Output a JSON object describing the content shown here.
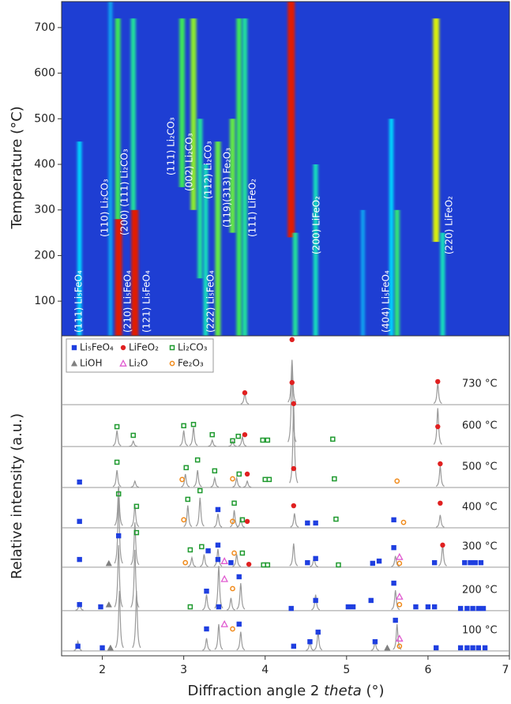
{
  "chart_data": [
    {
      "type": "heatmap",
      "y_label": "Temperature (°C)",
      "xlim": [
        1.5,
        7.0
      ],
      "ylim": [
        24,
        757
      ],
      "yticks": [
        100,
        200,
        300,
        400,
        500,
        600,
        700
      ],
      "streaks": [
        {
          "x": 1.72,
          "tmin": 24,
          "tmax": 450,
          "level": 0.3
        },
        {
          "x": 2.1,
          "tmin": 24,
          "tmax": 757,
          "level": 0.2
        },
        {
          "x": 2.2,
          "tmin": 24,
          "tmax": 280,
          "level": 1.0
        },
        {
          "x": 2.19,
          "tmin": 280,
          "tmax": 720,
          "level": 0.55
        },
        {
          "x": 2.4,
          "tmin": 24,
          "tmax": 300,
          "level": 1.0
        },
        {
          "x": 2.38,
          "tmin": 300,
          "tmax": 720,
          "level": 0.45
        },
        {
          "x": 2.98,
          "tmin": 350,
          "tmax": 720,
          "level": 0.55
        },
        {
          "x": 3.12,
          "tmin": 300,
          "tmax": 720,
          "level": 0.65
        },
        {
          "x": 3.2,
          "tmin": 150,
          "tmax": 500,
          "level": 0.45
        },
        {
          "x": 3.27,
          "tmin": 24,
          "tmax": 400,
          "level": 0.4
        },
        {
          "x": 3.42,
          "tmin": 24,
          "tmax": 450,
          "level": 0.6
        },
        {
          "x": 3.6,
          "tmin": 250,
          "tmax": 500,
          "level": 0.6
        },
        {
          "x": 3.68,
          "tmin": 24,
          "tmax": 720,
          "level": 0.55
        },
        {
          "x": 3.75,
          "tmin": 24,
          "tmax": 720,
          "level": 0.45
        },
        {
          "x": 4.32,
          "tmin": 240,
          "tmax": 757,
          "level": 1.0
        },
        {
          "x": 4.37,
          "tmin": 24,
          "tmax": 250,
          "level": 0.45
        },
        {
          "x": 4.62,
          "tmin": 24,
          "tmax": 400,
          "level": 0.4
        },
        {
          "x": 5.2,
          "tmin": 24,
          "tmax": 300,
          "level": 0.2
        },
        {
          "x": 5.55,
          "tmin": 24,
          "tmax": 500,
          "level": 0.3
        },
        {
          "x": 5.62,
          "tmin": 24,
          "tmax": 300,
          "level": 0.5
        },
        {
          "x": 6.1,
          "tmin": 230,
          "tmax": 720,
          "level": 0.75
        },
        {
          "x": 6.18,
          "tmin": 24,
          "tmax": 250,
          "level": 0.4
        }
      ],
      "annotations": [
        "(111) Li₅FeO₄",
        "(210) Li₅FeO₄",
        "(121) Li₅FeO₄",
        "(110) Li₂CO₃",
        "(200) (111) Li₂CO₃",
        "(111) Li₂CO₃",
        "(002) Li₂CO₃",
        "(112) Li₂CO₃",
        "(119)(313) Fe₂O₃",
        "(222) Li₅FeO₄",
        "(111) LiFeO₂",
        "(200) LiFeO₂",
        "(404) Li₅FeO₄",
        "(220) LiFeO₂"
      ]
    },
    {
      "type": "xrd-stack",
      "y_label": "Relative intensity (a.u.)",
      "x_label": {
        "text": "Diffraction angle 2",
        "italic": "theta",
        "unit": "(°)"
      },
      "xlim": [
        1.5,
        7.0
      ],
      "xticks": [
        2,
        3,
        4,
        5,
        6,
        7
      ],
      "ylim": [
        0,
        100
      ],
      "legend": [
        {
          "name": "Li₅FeO₄",
          "color": "#1f3fe0",
          "shape": "square"
        },
        {
          "name": "LiFeO₂",
          "color": "#e02020",
          "shape": "circle"
        },
        {
          "name": "Li₂CO₃",
          "color": "#1f9a2f",
          "shape": "open-square"
        },
        {
          "name": "LiOH",
          "color": "#808080",
          "shape": "triangle"
        },
        {
          "name": "Li₂O",
          "color": "#e05ad0",
          "shape": "open-triangle"
        },
        {
          "name": "Fe₂O₃",
          "color": "#f08a1a",
          "shape": "open-circle"
        }
      ],
      "patterns": [
        {
          "label": "730 °C",
          "baseline": 78.5,
          "peaks": {
            "x": [
              3.75,
              4.33,
              6.12
            ],
            "heights": [
              3.7,
              14,
              6.7
            ]
          },
          "markers": {
            "x": [
              3.75,
              4.33,
              6.12
            ],
            "y": [
              82.2,
              98.8,
              85.7
            ],
            "phase": [
              1,
              1,
              1
            ]
          }
        },
        {
          "label": "600 °C",
          "baseline": 65.4,
          "peaks": {
            "x": [
              2.18,
              2.38,
              3.0,
              3.12,
              3.35,
              3.6,
              3.72,
              4.33,
              6.12
            ],
            "heights": [
              5,
              1.7,
              5,
              6,
              2,
              1.7,
              3,
              26,
              12
            ]
          },
          "markers": {
            "x": [
              2.18,
              2.38,
              3.0,
              3.12,
              3.35,
              3.6,
              3.67,
              3.75,
              3.97,
              4.03,
              4.33,
              4.83,
              6.12
            ],
            "y": [
              71.6,
              68.9,
              71.9,
              72.3,
              69.1,
              67.2,
              68.6,
              69.1,
              67.4,
              67.4,
              85.4,
              67.7,
              71.6
            ],
            "phase": [
              2,
              2,
              2,
              2,
              2,
              2,
              2,
              1,
              2,
              2,
              1,
              2,
              1
            ]
          }
        },
        {
          "label": "500 °C",
          "baseline": 52.6,
          "peaks": {
            "x": [
              2.18,
              2.4,
              3.02,
              3.17,
              3.38,
              3.65,
              3.78,
              4.35,
              6.15
            ],
            "heights": [
              5.4,
              2,
              4.2,
              5.4,
              3,
              3,
              2,
              26,
              6.7
            ]
          },
          "markers": {
            "x": [
              1.72,
              2.18,
              3.03,
              3.17,
              2.98,
              3.38,
              3.6,
              3.68,
              3.78,
              4.0,
              4.05,
              4.35,
              4.85,
              5.62,
              6.15
            ],
            "y": [
              54.3,
              60.5,
              58.8,
              61.2,
              55.1,
              57.8,
              55.3,
              56.8,
              56.8,
              55.1,
              55.1,
              78.8,
              55.3,
              54.6,
              60
            ],
            "phase": [
              0,
              2,
              2,
              2,
              5,
              2,
              5,
              2,
              1,
              2,
              2,
              1,
              2,
              5,
              1
            ]
          }
        },
        {
          "label": "400 °C",
          "baseline": 40,
          "peaks": {
            "x": [
              2.2,
              2.4,
              3.05,
              3.2,
              3.42,
              3.62,
              3.7,
              4.36,
              6.15
            ],
            "heights": [
              13,
              7,
              7,
              9.4,
              4.4,
              5.5,
              3,
              4.5,
              4
            ]
          },
          "markers": {
            "x": [
              1.72,
              2.2,
              2.42,
              3.05,
              3.0,
              3.2,
              3.42,
              3.62,
              3.6,
              3.72,
              3.78,
              4.35,
              4.52,
              4.62,
              4.87,
              5.58,
              5.7,
              6.15
            ],
            "y": [
              42,
              50.6,
              46.7,
              48.9,
              42.5,
              51.6,
              45.7,
              47.7,
              42,
              42.5,
              42,
              58.5,
              41.5,
              41.5,
              42.7,
              42.5,
              41.7,
              47.7
            ],
            "phase": [
              0,
              2,
              2,
              2,
              5,
              2,
              0,
              2,
              5,
              2,
              1,
              1,
              0,
              0,
              2,
              0,
              5,
              1
            ]
          }
        },
        {
          "label": "300 °C",
          "baseline": 27.7,
          "peaks": {
            "x": [
              2.2,
              2.4,
              3.1,
              3.25,
              3.42,
              3.65,
              4.35,
              4.6,
              5.6,
              6.18
            ],
            "heights": [
              21.7,
              14,
              3,
              4,
              5.7,
              4,
              7.4,
              3,
              3.5,
              7
            ]
          },
          "markers": {
            "x": [
              1.72,
              2.08,
              2.2,
              2.42,
              3.08,
              3.02,
              3.22,
              3.3,
              3.42,
              3.5,
              3.62,
              3.72,
              3.58,
              3.8,
              3.98,
              4.03,
              4.35,
              4.52,
              4.62,
              4.9,
              5.32,
              5.4,
              5.58,
              5.65,
              5.65,
              6.08,
              6.18,
              6.45,
              6.52,
              6.58,
              6.65
            ],
            "y": [
              30.1,
              28.9,
              37.5,
              38.5,
              33.1,
              29.1,
              34.1,
              32.8,
              34.6,
              29.6,
              32.1,
              32.1,
              29.1,
              28.6,
              28.4,
              28.4,
              46.9,
              29.1,
              30.4,
              28.4,
              28.9,
              29.6,
              33.8,
              30.9,
              28.9,
              29.1,
              34.6,
              29.1,
              29.1,
              29.1,
              29.1
            ],
            "phase": [
              0,
              3,
              0,
              2,
              2,
              5,
              2,
              0,
              0,
              4,
              5,
              2,
              0,
              1,
              2,
              2,
              1,
              0,
              0,
              2,
              0,
              0,
              0,
              4,
              5,
              0,
              1,
              0,
              0,
              0,
              0
            ]
          }
        },
        {
          "label": "200 °C",
          "baseline": 14.1,
          "peaks": {
            "x": [
              1.72,
              2.2,
              2.4,
              3.28,
              3.43,
              3.58,
              3.7,
              4.62,
              5.6
            ],
            "heights": [
              2.5,
              20.5,
              19,
              5,
              14,
              4,
              8.6,
              5,
              6.4
            ]
          },
          "markers": {
            "x": [
              1.72,
              1.98,
              2.08,
              3.08,
              3.28,
              3.42,
              3.5,
              3.6,
              3.68,
              4.32,
              4.62,
              5.02,
              5.08,
              5.3,
              5.58,
              5.65,
              5.65,
              5.85,
              6.0,
              6.08,
              6.4,
              6.48,
              6.55,
              6.62,
              6.68
            ],
            "y": [
              16,
              15.3,
              16,
              15.3,
              20.2,
              30.1,
              24,
              21,
              24.7,
              14.8,
              17.3,
              15.3,
              15.3,
              17.3,
              22.7,
              18.5,
              16,
              15.3,
              15.3,
              15.3,
              14.8,
              14.8,
              14.8,
              14.8,
              14.8
            ],
            "phase": [
              0,
              0,
              3,
              2,
              0,
              0,
              4,
              5,
              0,
              0,
              0,
              0,
              0,
              0,
              0,
              4,
              5,
              0,
              0,
              0,
              0,
              0,
              0,
              0,
              0
            ]
          }
        },
        {
          "label": "100 °C",
          "baseline": 1.5,
          "peaks": {
            "x": [
              1.7,
              2.21,
              2.42,
              3.28,
              3.43,
              3.7,
              4.55,
              4.65,
              5.35,
              5.62
            ],
            "heights": [
              3,
              18.8,
              18.8,
              4,
              8.4,
              6,
              3,
              6,
              3,
              8.4
            ]
          },
          "markers": {
            "x": [
              1.7,
              2.0,
              2.1,
              3.28,
              3.43,
              3.5,
              3.6,
              3.68,
              4.35,
              4.55,
              4.65,
              5.35,
              5.5,
              5.6,
              5.65,
              5.65,
              6.1,
              6.4,
              6.48,
              6.55,
              6.62,
              6.7
            ],
            "y": [
              3,
              2.5,
              2.5,
              8.4,
              15.3,
              9.9,
              8.4,
              9.9,
              3,
              4.4,
              7.4,
              4.4,
              2.5,
              11.1,
              5.4,
              3,
              2.5,
              2.5,
              2.5,
              2.5,
              2.5,
              2.5
            ],
            "phase": [
              0,
              0,
              3,
              0,
              0,
              4,
              5,
              0,
              0,
              0,
              0,
              0,
              3,
              0,
              4,
              5,
              0,
              0,
              0,
              0,
              0,
              0
            ]
          }
        }
      ]
    }
  ]
}
